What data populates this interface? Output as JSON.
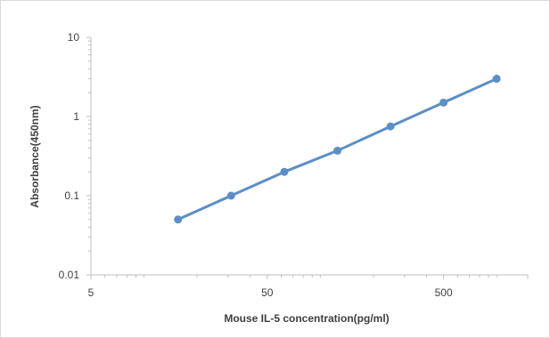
{
  "chart_data": {
    "type": "line",
    "title": "",
    "xlabel": "Mouse IL-5  concentration(pg/ml)",
    "ylabel": "Absorbance(450nm)",
    "x_scale": "log",
    "y_scale": "log",
    "xlim": [
      5,
      1500
    ],
    "ylim": [
      0.01,
      10
    ],
    "x_ticks": [
      5,
      50,
      500
    ],
    "x_tick_labels": [
      "5",
      "50",
      "500"
    ],
    "y_ticks": [
      0.01,
      0.1,
      1,
      10
    ],
    "y_tick_labels": [
      "0.01",
      "0.1",
      "1",
      "10"
    ],
    "grid": false,
    "legend": "none",
    "series": [
      {
        "x": [
          15.6,
          31.2,
          62.5,
          125,
          250,
          500,
          1000
        ],
        "y": [
          0.05,
          0.1,
          0.2,
          0.37,
          0.75,
          1.5,
          3.0
        ]
      }
    ],
    "colors": {
      "line": "#5b8fc7",
      "marker": "#5b8fc7",
      "axis": "#bfbfbf",
      "text": "#404040"
    }
  }
}
